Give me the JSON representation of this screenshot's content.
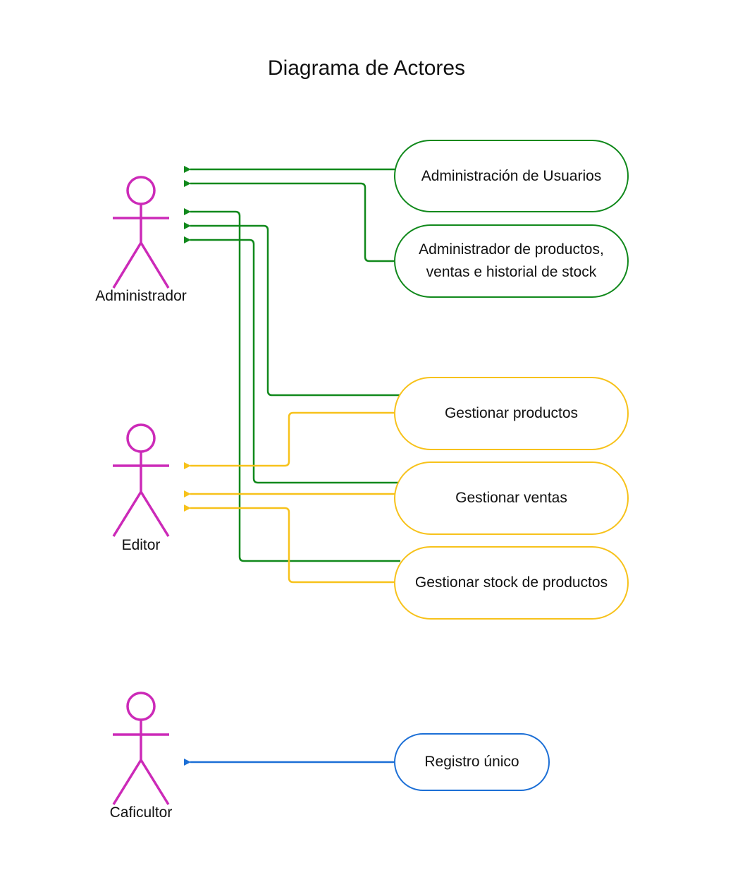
{
  "diagram": {
    "title": "Diagrama de Actores",
    "colors": {
      "actor": "#cc2ab8",
      "administrador": "#11891c",
      "editor": "#f7c21b",
      "caficultor": "#1c6fd6"
    },
    "actors": [
      {
        "id": "administrador",
        "label": "Administrador"
      },
      {
        "id": "editor",
        "label": "Editor"
      },
      {
        "id": "caficultor",
        "label": "Caficultor"
      }
    ],
    "use_cases": [
      {
        "id": "admin-usuarios",
        "label": "Administración de Usuarios",
        "color": "#11891c"
      },
      {
        "id": "admin-productos",
        "label": "Administrador de productos,\nventas e historial de stock",
        "color": "#11891c"
      },
      {
        "id": "gestionar-productos",
        "label": "Gestionar productos",
        "color": "#f7c21b"
      },
      {
        "id": "gestionar-ventas",
        "label": "Gestionar ventas",
        "color": "#f7c21b"
      },
      {
        "id": "gestionar-stock",
        "label": "Gestionar stock de productos",
        "color": "#f7c21b"
      },
      {
        "id": "registro-unico",
        "label": "Registro único",
        "color": "#1c6fd6"
      }
    ],
    "connections": [
      {
        "from": "admin-usuarios",
        "to": "administrador",
        "color": "#11891c"
      },
      {
        "from": "admin-productos",
        "to": "administrador",
        "color": "#11891c"
      },
      {
        "from": "gestionar-stock",
        "to": "administrador",
        "color": "#11891c"
      },
      {
        "from": "gestionar-productos",
        "to": "administrador",
        "color": "#11891c"
      },
      {
        "from": "gestionar-ventas",
        "to": "administrador",
        "color": "#11891c"
      },
      {
        "from": "gestionar-productos",
        "to": "editor",
        "color": "#f7c21b"
      },
      {
        "from": "gestionar-ventas",
        "to": "editor",
        "color": "#f7c21b"
      },
      {
        "from": "gestionar-stock",
        "to": "editor",
        "color": "#f7c21b"
      },
      {
        "from": "registro-unico",
        "to": "caficultor",
        "color": "#1c6fd6"
      }
    ]
  }
}
